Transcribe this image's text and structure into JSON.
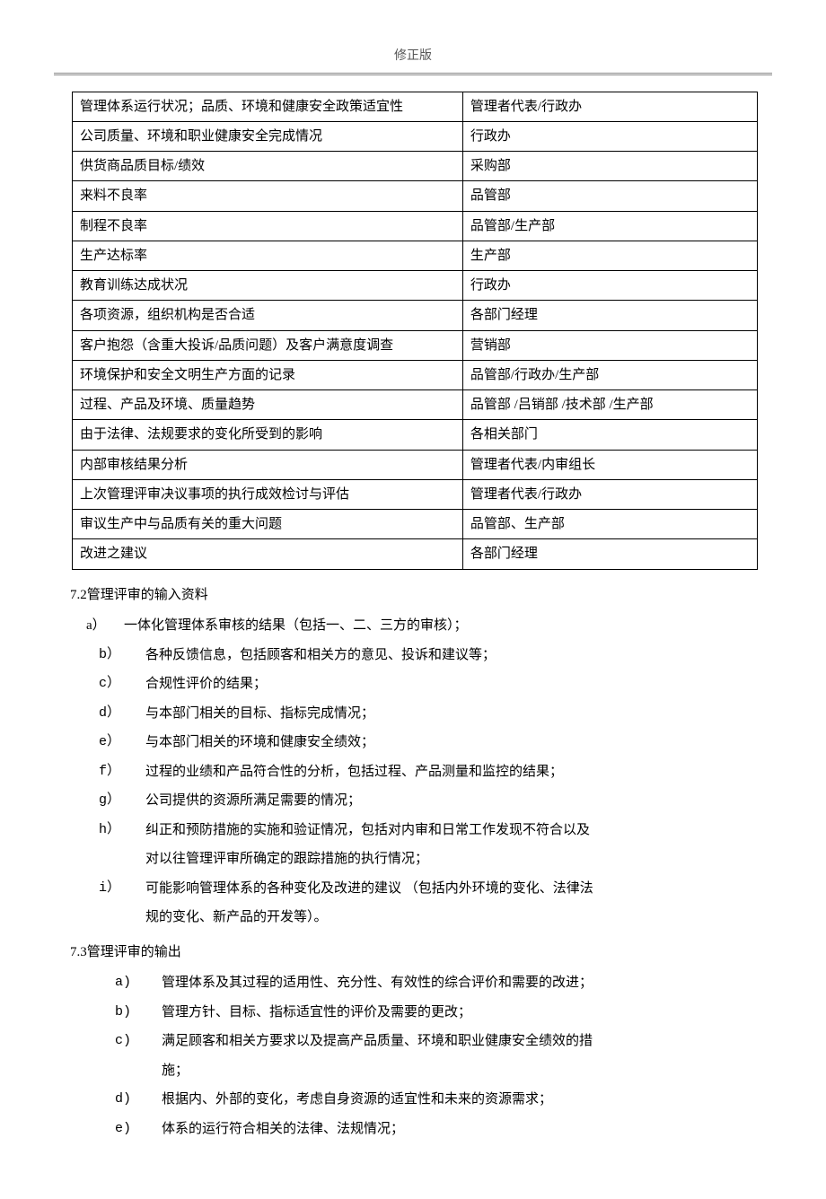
{
  "header": "修正版",
  "table": {
    "rows": [
      [
        "管理体系运行状况；品质、环境和健康安全政策适宜性",
        "管理者代表/行政办"
      ],
      [
        "公司质量、环境和职业健康安全完成情况",
        "行政办"
      ],
      [
        "供货商品质目标/绩效",
        "采购部"
      ],
      [
        "来料不良率",
        "品管部"
      ],
      [
        "制程不良率",
        "品管部/生产部"
      ],
      [
        "生产达标率",
        "生产部"
      ],
      [
        "教育训练达成状况",
        "行政办"
      ],
      [
        "各项资源，组织机构是否合适",
        "各部门经理"
      ],
      [
        "客户抱怨（含重大投诉/品质问题）及客户满意度调查",
        "营销部"
      ],
      [
        "环境保护和安全文明生产方面的记录",
        "品管部/行政办/生产部"
      ],
      [
        "过程、产品及环境、质量趋势",
        "品管部 /吕销部 /技术部 /生产部"
      ],
      [
        "由于法律、法规要求的变化所受到的影响",
        "各相关部门"
      ],
      [
        "内部审核结果分析",
        "管理者代表/内审组长"
      ],
      [
        "上次管理评审决议事项的执行成效检讨与评估",
        "管理者代表/行政办"
      ],
      [
        "审议生产中与品质有关的重大问题",
        "品管部、生产部"
      ],
      [
        "改进之建议",
        "各部门经理"
      ]
    ]
  },
  "section72": {
    "heading": "7.2管理评审的输入资料",
    "items": [
      {
        "marker": "a）",
        "text": "一体化管理体系审核的结果（包括一、二、三方的审核）；",
        "first": true
      },
      {
        "marker": "b）",
        "text": "各种反馈信息，包括顾客和相关方的意见、投诉和建议等；"
      },
      {
        "marker": "c）",
        "text": "合规性评价的结果；"
      },
      {
        "marker": "d）",
        "text": "与本部门相关的目标、指标完成情况；"
      },
      {
        "marker": "e）",
        "text": "与本部门相关的环境和健康安全绩效；"
      },
      {
        "marker": "f）",
        "text": "过程的业绩和产品符合性的分析，包括过程、产品测量和监控的结果；"
      },
      {
        "marker": "g）",
        "text": "公司提供的资源所满足需要的情况；"
      },
      {
        "marker": "h）",
        "text": "纠正和预防措施的实施和验证情况，包括对内审和日常工作发现不符合以及",
        "cont": "对以往管理评审所确定的跟踪措施的执行情况；"
      },
      {
        "marker": "i）",
        "text": "可能影响管理体系的各种变化及改进的建议 （包括内外环境的变化、法律法",
        "cont": "规的变化、新产品的开发等）。"
      }
    ]
  },
  "section73": {
    "heading": "7.3管理评审的输出",
    "items": [
      {
        "marker": "a)",
        "text": "管理体系及其过程的适用性、充分性、有效性的综合评价和需要的改进；"
      },
      {
        "marker": "b)",
        "text": "管理方针、目标、指标适宜性的评价及需要的更改；"
      },
      {
        "marker": "c)",
        "text": "满足顾客和相关方要求以及提高产品质量、环境和职业健康安全绩效的措",
        "cont": "施；"
      },
      {
        "marker": "d)",
        "text": "根据内、外部的变化，考虑自身资源的适宜性和未来的资源需求；"
      },
      {
        "marker": "e)",
        "text": "体系的运行符合相关的法律、法规情况；"
      }
    ]
  }
}
